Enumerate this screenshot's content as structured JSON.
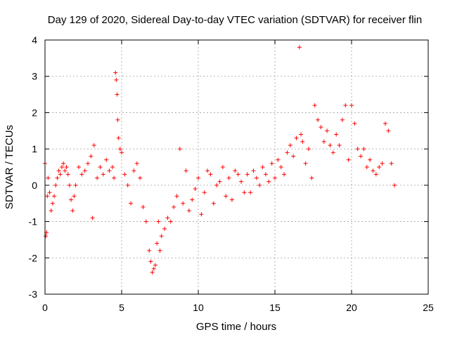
{
  "chart_data": {
    "type": "scatter",
    "title": "Day 129 of 2020, Sidereal Day-to-day VTEC variation (SDTVAR) for receiver flin",
    "xlabel": "GPS time / hours",
    "ylabel": "SDTVAR / TECUs",
    "xlim": [
      0,
      25
    ],
    "ylim": [
      -3,
      4
    ],
    "xticks": [
      0,
      5,
      10,
      15,
      20,
      25
    ],
    "yticks": [
      -3,
      -2,
      -1,
      0,
      1,
      2,
      3,
      4
    ],
    "grid": true,
    "marker": "plus",
    "color": "#ff0000",
    "series": [
      {
        "name": "SDTVAR",
        "x": [
          0.0,
          0.05,
          0.1,
          0.15,
          0.2,
          0.3,
          0.4,
          0.5,
          0.6,
          0.7,
          0.8,
          0.9,
          1.0,
          1.1,
          1.2,
          1.3,
          1.4,
          1.5,
          1.6,
          1.7,
          1.8,
          1.9,
          2.0,
          2.2,
          2.4,
          2.6,
          2.8,
          3.0,
          3.1,
          3.2,
          3.4,
          3.6,
          3.8,
          4.0,
          4.2,
          4.4,
          4.5,
          4.6,
          4.65,
          4.7,
          4.75,
          4.8,
          4.9,
          5.0,
          5.2,
          5.4,
          5.6,
          5.8,
          6.0,
          6.2,
          6.4,
          6.6,
          6.8,
          6.9,
          7.0,
          7.1,
          7.2,
          7.3,
          7.4,
          7.5,
          7.6,
          7.8,
          8.0,
          8.2,
          8.4,
          8.6,
          8.8,
          9.0,
          9.2,
          9.4,
          9.6,
          9.8,
          10.0,
          10.2,
          10.4,
          10.6,
          10.8,
          11.0,
          11.2,
          11.4,
          11.6,
          11.8,
          12.0,
          12.2,
          12.4,
          12.6,
          12.8,
          13.0,
          13.2,
          13.4,
          13.6,
          13.8,
          14.0,
          14.2,
          14.4,
          14.6,
          14.8,
          15.0,
          15.2,
          15.4,
          15.6,
          15.8,
          16.0,
          16.2,
          16.4,
          16.6,
          16.7,
          16.8,
          17.0,
          17.2,
          17.4,
          17.6,
          17.8,
          18.0,
          18.2,
          18.4,
          18.6,
          18.8,
          19.0,
          19.2,
          19.4,
          19.6,
          19.8,
          20.0,
          20.2,
          20.4,
          20.6,
          20.8,
          21.0,
          21.2,
          21.4,
          21.6,
          21.8,
          22.0,
          22.2,
          22.4,
          22.6,
          22.8
        ],
        "y": [
          0.6,
          -1.4,
          -1.3,
          -0.3,
          0.2,
          -0.2,
          -0.7,
          -0.5,
          -0.3,
          0.0,
          0.2,
          0.4,
          0.3,
          0.5,
          0.6,
          0.4,
          0.5,
          0.3,
          0.0,
          -0.4,
          -0.7,
          -0.3,
          0.0,
          0.5,
          0.3,
          0.4,
          0.6,
          0.8,
          -0.9,
          1.1,
          0.2,
          0.5,
          0.3,
          0.7,
          0.4,
          0.5,
          0.2,
          3.1,
          2.9,
          2.5,
          1.8,
          1.3,
          1.0,
          0.9,
          0.3,
          0.0,
          -0.5,
          0.4,
          0.6,
          0.2,
          -0.6,
          -1.0,
          -1.8,
          -2.1,
          -2.4,
          -2.3,
          -2.2,
          -1.6,
          -1.0,
          -1.8,
          -1.4,
          -1.2,
          -0.9,
          -1.0,
          -0.6,
          -0.3,
          1.0,
          -0.5,
          0.4,
          -0.7,
          -0.4,
          -0.1,
          0.2,
          -0.8,
          -0.2,
          0.4,
          0.3,
          -0.5,
          0.0,
          0.1,
          0.5,
          -0.3,
          0.2,
          -0.4,
          0.4,
          0.3,
          0.1,
          -0.2,
          0.3,
          -0.2,
          0.4,
          0.2,
          0.0,
          0.5,
          0.3,
          0.1,
          0.6,
          0.2,
          0.7,
          0.5,
          0.3,
          0.9,
          1.1,
          0.8,
          1.3,
          3.8,
          1.4,
          1.2,
          0.6,
          1.0,
          0.2,
          2.2,
          1.8,
          1.6,
          1.2,
          1.5,
          1.1,
          0.9,
          1.4,
          1.1,
          1.8,
          2.2,
          0.7,
          2.2,
          1.7,
          1.0,
          0.8,
          1.0,
          0.5,
          0.7,
          0.4,
          0.3,
          0.5,
          0.6,
          1.7,
          1.5,
          0.6,
          0.0
        ]
      }
    ]
  }
}
